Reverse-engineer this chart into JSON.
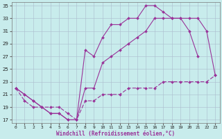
{
  "xlabel": "Windchill (Refroidissement éolien,°C)",
  "background_color": "#c8ecec",
  "line_color": "#993399",
  "grid_color": "#aabbcc",
  "xlim_min": -0.5,
  "xlim_max": 23.5,
  "ylim_min": 16.5,
  "ylim_max": 35.5,
  "yticks": [
    17,
    19,
    21,
    23,
    25,
    27,
    29,
    31,
    33,
    35
  ],
  "xticks": [
    0,
    1,
    2,
    3,
    4,
    5,
    6,
    7,
    8,
    9,
    10,
    11,
    12,
    13,
    14,
    15,
    16,
    17,
    18,
    19,
    20,
    21,
    22,
    23
  ],
  "curve1_x": [
    0,
    1,
    2,
    3,
    4,
    5,
    6,
    7,
    8,
    9,
    10,
    11,
    12,
    13,
    14,
    15,
    16,
    17,
    18,
    19,
    20,
    21
  ],
  "curve1_y": [
    22,
    21,
    20,
    19,
    18,
    18,
    17,
    17,
    28,
    27,
    30,
    32,
    32,
    33,
    33,
    35,
    35,
    34,
    33,
    33,
    31,
    27
  ],
  "curve2_x": [
    0,
    1,
    2,
    3,
    4,
    5,
    6,
    7,
    8,
    9,
    10,
    11,
    12,
    13,
    14,
    15,
    16,
    17,
    18,
    19,
    20,
    21,
    22,
    23
  ],
  "curve2_y": [
    22,
    21,
    20,
    19,
    18,
    18,
    17,
    17,
    22,
    22,
    26,
    27,
    28,
    29,
    30,
    31,
    33,
    33,
    33,
    33,
    33,
    33,
    31,
    24
  ],
  "curve3_x": [
    0,
    1,
    2,
    3,
    4,
    5,
    6,
    7,
    8,
    9,
    10,
    11,
    12,
    13,
    14,
    15,
    16,
    17,
    18,
    19,
    20,
    21,
    22,
    23
  ],
  "curve3_y": [
    22,
    20,
    19,
    19,
    19,
    19,
    18,
    17,
    20,
    20,
    21,
    21,
    21,
    22,
    22,
    22,
    22,
    23,
    23,
    23,
    23,
    23,
    23,
    24
  ]
}
